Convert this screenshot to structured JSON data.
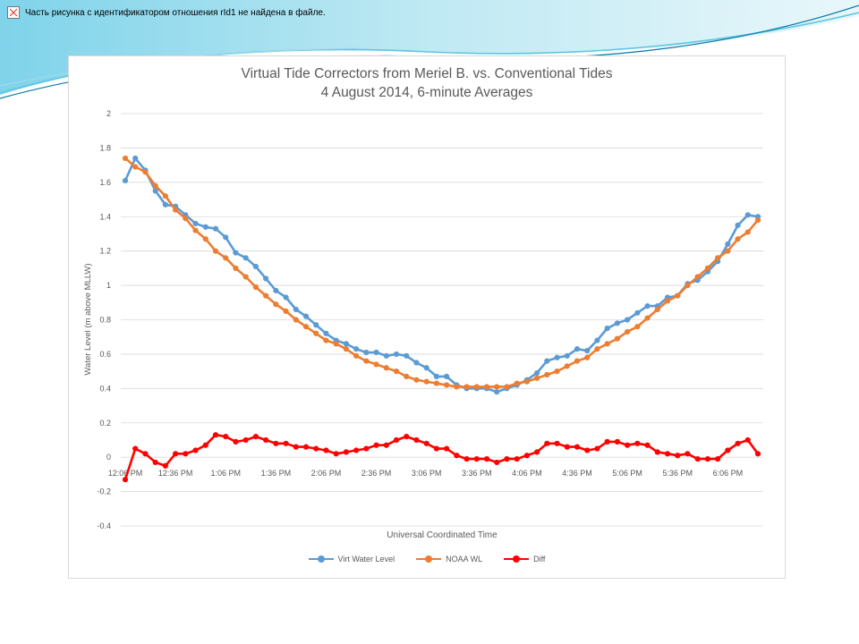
{
  "slide": {
    "missing_image_text": "Часть рисунка с идентификатором отношения rId1 не найдена в файле.",
    "accent_colors": [
      "#5fc6e0",
      "#0a79a8",
      "#bfe9f3"
    ]
  },
  "chart_data": {
    "type": "line",
    "title": "Virtual Tide Correctors from Meriel B. vs. Conventional Tides",
    "subtitle": "4 August 2014, 6-minute Averages",
    "xlabel": "Universal Coordinated Time",
    "ylabel": "Water Level (m above MLLW)",
    "ylim": [
      -0.4,
      2
    ],
    "yticks": [
      "-0.4",
      "-0.2",
      "0",
      "0.2",
      "0.4",
      "0.6",
      "0.8",
      "1",
      "1.2",
      "1.4",
      "1.6",
      "1.8",
      "2"
    ],
    "xtick_labels": [
      "12:06 PM",
      "12:36 PM",
      "1:06 PM",
      "1:36 PM",
      "2:06 PM",
      "2:36 PM",
      "3:06 PM",
      "3:36 PM",
      "4:06 PM",
      "4:36 PM",
      "5:06 PM",
      "5:36 PM",
      "6:06 PM"
    ],
    "xtick_step": 5,
    "grid": true,
    "legend_position": "bottom",
    "series": [
      {
        "name": "Virt Water Level",
        "color": "#5b9bd5",
        "values": [
          1.61,
          1.74,
          1.67,
          1.55,
          1.47,
          1.46,
          1.41,
          1.36,
          1.34,
          1.33,
          1.28,
          1.19,
          1.16,
          1.11,
          1.04,
          0.97,
          0.93,
          0.86,
          0.82,
          0.77,
          0.72,
          0.68,
          0.66,
          0.63,
          0.61,
          0.61,
          0.59,
          0.6,
          0.59,
          0.55,
          0.52,
          0.47,
          0.47,
          0.42,
          0.4,
          0.4,
          0.4,
          0.38,
          0.4,
          0.42,
          0.45,
          0.49,
          0.56,
          0.58,
          0.59,
          0.63,
          0.62,
          0.68,
          0.75,
          0.78,
          0.8,
          0.84,
          0.88,
          0.88,
          0.93,
          0.94,
          1.01,
          1.03,
          1.08,
          1.14,
          1.24,
          1.35,
          1.41,
          1.4
        ]
      },
      {
        "name": "NOAA WL",
        "color": "#ed7d31",
        "values": [
          1.74,
          1.69,
          1.66,
          1.58,
          1.52,
          1.44,
          1.39,
          1.32,
          1.27,
          1.2,
          1.16,
          1.1,
          1.05,
          0.99,
          0.94,
          0.89,
          0.85,
          0.8,
          0.76,
          0.72,
          0.68,
          0.66,
          0.63,
          0.59,
          0.56,
          0.54,
          0.52,
          0.5,
          0.47,
          0.45,
          0.44,
          0.43,
          0.42,
          0.41,
          0.41,
          0.41,
          0.41,
          0.41,
          0.41,
          0.43,
          0.44,
          0.46,
          0.48,
          0.5,
          0.53,
          0.56,
          0.58,
          0.63,
          0.66,
          0.69,
          0.73,
          0.76,
          0.81,
          0.86,
          0.91,
          0.94,
          1.0,
          1.05,
          1.1,
          1.16,
          1.2,
          1.27,
          1.31,
          1.38
        ]
      },
      {
        "name": "Diff",
        "color": "#ff0000",
        "values": [
          -0.13,
          0.05,
          0.02,
          -0.03,
          -0.05,
          0.02,
          0.02,
          0.04,
          0.07,
          0.13,
          0.12,
          0.09,
          0.1,
          0.12,
          0.1,
          0.08,
          0.08,
          0.06,
          0.06,
          0.05,
          0.04,
          0.02,
          0.03,
          0.04,
          0.05,
          0.07,
          0.07,
          0.1,
          0.12,
          0.1,
          0.08,
          0.05,
          0.05,
          0.01,
          -0.01,
          -0.01,
          -0.01,
          -0.03,
          -0.01,
          -0.01,
          0.01,
          0.03,
          0.08,
          0.08,
          0.06,
          0.06,
          0.04,
          0.05,
          0.09,
          0.09,
          0.07,
          0.08,
          0.07,
          0.03,
          0.02,
          0.01,
          0.02,
          -0.01,
          -0.01,
          -0.01,
          0.04,
          0.08,
          0.1,
          0.02
        ]
      }
    ]
  }
}
